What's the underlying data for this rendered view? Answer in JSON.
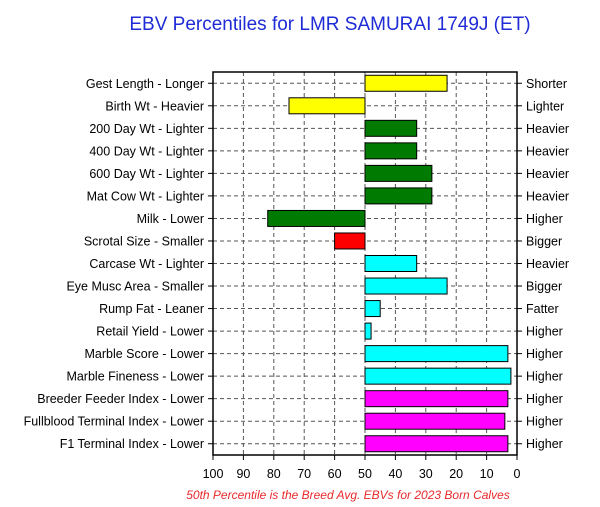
{
  "chart_data": {
    "type": "bar",
    "orientation": "horizontal",
    "title": "EBV Percentiles for LMR SAMURAI 1749J (ET)",
    "footnote": "50th Percentile is the Breed Avg. EBVs for 2023 Born Calves",
    "xlim": [
      100,
      0
    ],
    "baseline": 50,
    "x_ticks": [
      "100",
      "90",
      "80",
      "70",
      "60",
      "50",
      "40",
      "30",
      "20",
      "10",
      "0"
    ],
    "grid": true,
    "colors": {
      "yellow": "#ffff00",
      "green": "#007a00",
      "red": "#ff0000",
      "cyan": "#00ffff",
      "magenta": "#ff00ff"
    },
    "traits": [
      {
        "left_label": "Gest Length - Longer",
        "right_label": "Shorter",
        "value": 23,
        "color": "yellow"
      },
      {
        "left_label": "Birth Wt - Heavier",
        "right_label": "Lighter",
        "value": 75,
        "color": "yellow"
      },
      {
        "left_label": "200 Day Wt - Lighter",
        "right_label": "Heavier",
        "value": 33,
        "color": "green"
      },
      {
        "left_label": "400 Day Wt - Lighter",
        "right_label": "Heavier",
        "value": 33,
        "color": "green"
      },
      {
        "left_label": "600 Day Wt - Lighter",
        "right_label": "Heavier",
        "value": 28,
        "color": "green"
      },
      {
        "left_label": "Mat Cow Wt - Lighter",
        "right_label": "Heavier",
        "value": 28,
        "color": "green"
      },
      {
        "left_label": "Milk - Lower",
        "right_label": "Higher",
        "value": 82,
        "color": "green"
      },
      {
        "left_label": "Scrotal Size - Smaller",
        "right_label": "Bigger",
        "value": 60,
        "color": "red"
      },
      {
        "left_label": "Carcase Wt - Lighter",
        "right_label": "Heavier",
        "value": 33,
        "color": "cyan"
      },
      {
        "left_label": "Eye Musc Area - Smaller",
        "right_label": "Bigger",
        "value": 23,
        "color": "cyan"
      },
      {
        "left_label": "Rump Fat - Leaner",
        "right_label": "Fatter",
        "value": 45,
        "color": "cyan"
      },
      {
        "left_label": "Retail Yield - Lower",
        "right_label": "Higher",
        "value": 48,
        "color": "cyan"
      },
      {
        "left_label": "Marble Score - Lower",
        "right_label": "Higher",
        "value": 3,
        "color": "cyan"
      },
      {
        "left_label": "Marble Fineness - Lower",
        "right_label": "Higher",
        "value": 2,
        "color": "cyan"
      },
      {
        "left_label": "Breeder Feeder Index - Lower",
        "right_label": "Higher",
        "value": 3,
        "color": "magenta"
      },
      {
        "left_label": "Fullblood Terminal Index - Lower",
        "right_label": "Higher",
        "value": 4,
        "color": "magenta"
      },
      {
        "left_label": "F1 Terminal Index - Lower",
        "right_label": "Higher",
        "value": 3,
        "color": "magenta"
      }
    ]
  }
}
